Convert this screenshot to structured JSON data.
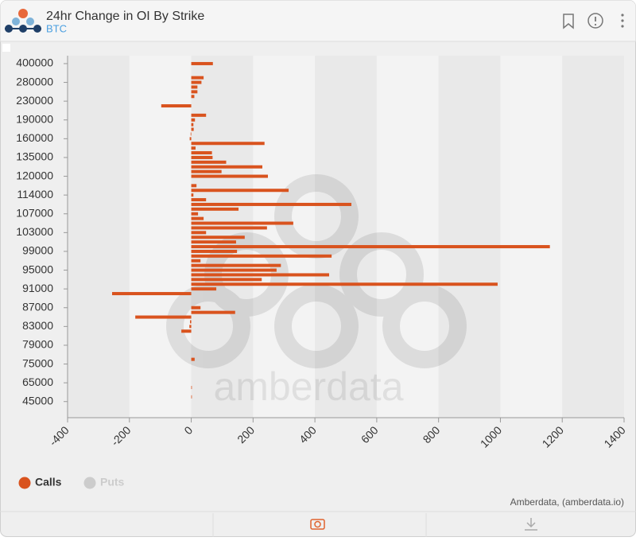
{
  "header": {
    "title": "24hr Change in OI By Strike",
    "subtitle": "BTC"
  },
  "footer": {
    "credit": "Amberdata, (amberdata.io)",
    "watermark": "amberdata"
  },
  "chart_data": {
    "type": "barh",
    "categories": [
      400000,
      null,
      null,
      null,
      280000,
      null,
      null,
      null,
      230000,
      null,
      null,
      null,
      190000,
      null,
      null,
      null,
      160000,
      null,
      null,
      null,
      135000,
      null,
      null,
      null,
      120000,
      null,
      null,
      null,
      114000,
      null,
      null,
      null,
      107000,
      null,
      null,
      null,
      103000,
      null,
      null,
      null,
      99000,
      null,
      null,
      null,
      95000,
      null,
      null,
      null,
      91000,
      null,
      null,
      null,
      87000,
      null,
      null,
      null,
      83000,
      null,
      null,
      null,
      79000,
      null,
      null,
      null,
      75000,
      null,
      null,
      null,
      65000,
      null,
      null,
      null,
      45000
    ],
    "series": [
      {
        "name": "Calls",
        "color": "#d9531e",
        "values": [
          70,
          0,
          0,
          40,
          33,
          20,
          20,
          10,
          0,
          -97,
          0,
          48,
          12,
          7,
          8,
          -2,
          -5,
          237,
          14,
          67,
          69,
          113,
          230,
          98,
          248,
          0,
          17,
          315,
          7,
          48,
          518,
          153,
          22,
          40,
          330,
          245,
          48,
          173,
          145,
          1160,
          148,
          454,
          30,
          290,
          276,
          446,
          228,
          991,
          81,
          -256,
          0,
          0,
          30,
          142,
          -181,
          -4,
          -6,
          -32,
          0,
          0,
          0,
          0,
          0,
          11,
          0,
          0,
          0,
          0,
          0,
          2,
          0,
          2,
          0
        ]
      },
      {
        "name": "Puts",
        "color": "#cccccc",
        "hidden": true,
        "values": [
          null,
          null,
          null,
          null,
          null,
          null,
          null,
          null,
          null,
          null,
          null,
          null,
          null,
          null,
          null,
          null,
          null,
          null,
          null,
          null,
          null,
          null,
          null,
          null,
          null,
          null,
          null,
          null,
          null,
          null,
          null,
          null,
          null,
          null,
          null,
          null,
          null,
          null,
          null,
          null,
          null,
          null,
          null,
          null,
          null,
          null,
          null,
          null,
          null,
          null,
          null,
          null,
          null,
          null,
          null,
          null,
          null,
          null,
          null,
          null,
          null,
          null,
          null,
          null,
          null,
          null,
          null,
          null,
          null,
          null,
          null,
          null,
          null
        ]
      }
    ],
    "xlim": [
      -400,
      1400
    ],
    "xticks": [
      -400,
      -200,
      0,
      200,
      400,
      600,
      800,
      1000,
      1200,
      1400
    ]
  }
}
